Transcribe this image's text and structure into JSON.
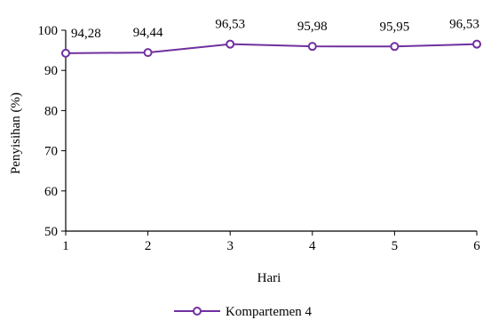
{
  "chart_data": {
    "type": "line",
    "x": [
      1,
      2,
      3,
      4,
      5,
      6
    ],
    "series": [
      {
        "name": "Kompartemen 4",
        "values": [
          94.28,
          94.44,
          96.53,
          95.98,
          95.95,
          96.53
        ],
        "labels": [
          "94,28",
          "94,44",
          "96,53",
          "95,98",
          "95,95",
          "96,53"
        ],
        "color": "#7030a0"
      }
    ],
    "xlabel": "Hari",
    "ylabel": "Penyisihan (%)",
    "ylim": [
      50,
      100
    ],
    "yticks": [
      50,
      60,
      70,
      80,
      90,
      100
    ],
    "xticks": [
      "1",
      "2",
      "3",
      "4",
      "5",
      "6"
    ],
    "grid": false,
    "legend": "bottom"
  }
}
